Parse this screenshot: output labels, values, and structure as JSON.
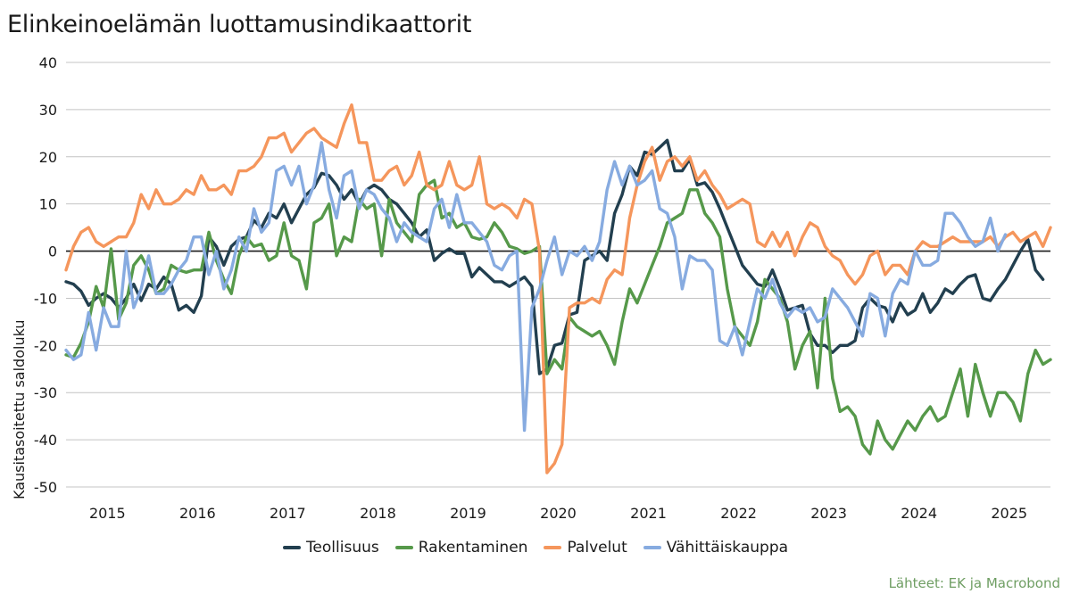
{
  "title": "Elinkeinoelämän luottamusindikaattorit",
  "source": "Lähteet: EK ja Macrobond",
  "colors": {
    "Teollisuus": "#223f4f",
    "Rakentaminen": "#56994a",
    "Palvelut": "#f5965c",
    "Vähittäiskauppa": "#87abe0"
  },
  "chart_data": {
    "type": "line",
    "title": "Elinkeinoelämän luottamusindikaattorit",
    "ylabel": "Kausitasoitettu saldoluku",
    "xlabel": "",
    "ylim": [
      -50,
      40
    ],
    "yticks": [
      40,
      30,
      20,
      10,
      0,
      -10,
      -20,
      -30,
      -40,
      -50
    ],
    "xlim": [
      "2014-08",
      "2025-07"
    ],
    "xticks": [
      "2015",
      "2016",
      "2017",
      "2018",
      "2019",
      "2020",
      "2021",
      "2022",
      "2023",
      "2024",
      "2025"
    ],
    "grid": "horizontal",
    "zero_line": true,
    "legend": "bottom",
    "series": [
      {
        "name": "Teollisuus",
        "start": "2014-08",
        "values": [
          -6.5,
          -7,
          -8.5,
          -11.5,
          -10,
          -9,
          -10,
          -12,
          -10,
          -7,
          -10.5,
          -7,
          -8,
          -5.5,
          -7,
          -12.5,
          -11.5,
          -13,
          -9.5,
          3,
          1,
          -3,
          1,
          2.5,
          3,
          6.5,
          5,
          8,
          7,
          10,
          6,
          9,
          12,
          13.5,
          16.5,
          16,
          14,
          11,
          13,
          10,
          13,
          14,
          13,
          11,
          10,
          8,
          6,
          3,
          4.5,
          -2,
          -0.5,
          0.5,
          -0.5,
          -0.5,
          -5.5,
          -3.5,
          -5,
          -6.5,
          -6.5,
          -7.5,
          -6.5,
          -5.5,
          -7.5,
          -26,
          -25,
          -20,
          -19.5,
          -13.5,
          -13,
          -2,
          -1,
          0,
          -2,
          8,
          12,
          18,
          16,
          21,
          20.5,
          22,
          23.5,
          17,
          17,
          19.5,
          14,
          14.5,
          12.5,
          9,
          5,
          1,
          -3,
          -5,
          -7,
          -7.5,
          -4,
          -8,
          -12.5,
          -12,
          -11.5,
          -17.5,
          -20,
          -20,
          -21.5,
          -20,
          -20,
          -19,
          -12,
          -10,
          -11.5,
          -12,
          -15,
          -11,
          -13.5,
          -12.5,
          -9,
          -13,
          -11,
          -8,
          -9,
          -7,
          -5.5,
          -5,
          -10,
          -10.5,
          -8,
          -6,
          -3,
          0,
          2.5,
          -4,
          -6
        ]
      },
      {
        "name": "Rakentaminen",
        "start": "2014-08",
        "values": [
          -22,
          -22.5,
          -19.5,
          -15,
          -7.5,
          -12,
          0.5,
          -14.5,
          -11,
          -3,
          -1,
          -4,
          -9,
          -8,
          -3,
          -4,
          -4.5,
          -4,
          -4,
          4,
          -2,
          -6,
          -9,
          -1,
          3,
          1,
          1.5,
          -2,
          -1,
          6,
          -1,
          -2,
          -8,
          6,
          7,
          10,
          -1,
          3,
          2,
          11,
          9,
          10,
          -1,
          11,
          6,
          4,
          2,
          12,
          14,
          15,
          7,
          8,
          5,
          6,
          3,
          2.5,
          3,
          6,
          4,
          1,
          0.5,
          -0.5,
          0,
          1,
          -26,
          -23,
          -25,
          -14,
          -16,
          -17,
          -18,
          -17,
          -20,
          -24,
          -15,
          -8,
          -11,
          -7,
          -3,
          1,
          6,
          7,
          8,
          13,
          13,
          8,
          6,
          3,
          -8,
          -16,
          -18,
          -20,
          -15,
          -6,
          -8,
          -10,
          -15,
          -25,
          -20,
          -17,
          -29,
          -10,
          -27,
          -34,
          -33,
          -35,
          -41,
          -43,
          -36,
          -40,
          -42,
          -39,
          -36,
          -38,
          -35,
          -33,
          -36,
          -35,
          -30,
          -25,
          -35,
          -24,
          -30,
          -35,
          -30,
          -30,
          -32,
          -36,
          -26,
          -21,
          -24,
          -23
        ]
      },
      {
        "name": "Palvelut",
        "start": "2014-08",
        "values": [
          -4,
          1,
          4,
          5,
          2,
          1,
          2,
          3,
          3,
          6,
          12,
          9,
          13,
          10,
          10,
          11,
          13,
          12,
          16,
          13,
          13,
          14,
          12,
          17,
          17,
          18,
          20,
          24,
          24,
          25,
          21,
          23,
          25,
          26,
          24,
          23,
          22,
          27,
          31,
          23,
          23,
          15,
          15,
          17,
          18,
          14,
          16,
          21,
          14,
          13,
          14,
          19,
          14,
          13,
          14,
          20,
          10,
          9,
          10,
          9,
          7,
          11,
          10,
          0,
          -47,
          -45,
          -41,
          -12,
          -11,
          -11,
          -10,
          -11,
          -6,
          -4,
          -5,
          7,
          14,
          19,
          22,
          15,
          19,
          20,
          18,
          20,
          15,
          17,
          14,
          12,
          9,
          10,
          11,
          10,
          2,
          1,
          4,
          1,
          4,
          -1,
          3,
          6,
          5,
          1,
          -1,
          -2,
          -5,
          -7,
          -5,
          -1,
          0,
          -5,
          -3,
          -3,
          -5,
          0,
          2,
          1,
          1,
          2,
          3,
          2,
          2,
          2,
          2,
          3,
          1,
          3,
          4,
          2,
          3,
          4,
          1,
          5
        ]
      },
      {
        "name": "Vähittäiskauppa",
        "start": "2014-08",
        "values": [
          -21,
          -23,
          -22,
          -13,
          -21,
          -12,
          -16,
          -16,
          0,
          -12,
          -8,
          -1,
          -9,
          -9,
          -7,
          -4,
          -2,
          3,
          3,
          -5,
          0,
          -8,
          -4,
          3,
          0,
          9,
          4,
          6,
          17,
          18,
          14,
          18,
          10,
          14,
          23,
          13,
          7,
          16,
          17,
          9,
          13,
          12,
          9,
          7,
          2,
          6,
          4,
          3,
          2,
          9,
          11,
          5,
          12,
          6,
          6,
          4,
          2,
          -3,
          -4,
          -1,
          0,
          -38,
          -12,
          -8,
          -2,
          3,
          -5,
          0,
          -1,
          1,
          -2,
          2,
          13,
          19,
          14,
          18,
          14,
          15,
          17,
          9,
          8,
          3,
          -8,
          -1,
          -2,
          -2,
          -4,
          -19,
          -20,
          -16,
          -22,
          -15,
          -8,
          -10,
          -6,
          -11,
          -14,
          -12,
          -13,
          -12,
          -15,
          -14,
          -8,
          -10,
          -12,
          -15,
          -18,
          -9,
          -10,
          -18,
          -9,
          -6,
          -7,
          0,
          -3,
          -3,
          -2,
          8,
          8,
          6,
          3,
          1,
          2,
          7,
          0,
          3.5
        ]
      }
    ]
  }
}
